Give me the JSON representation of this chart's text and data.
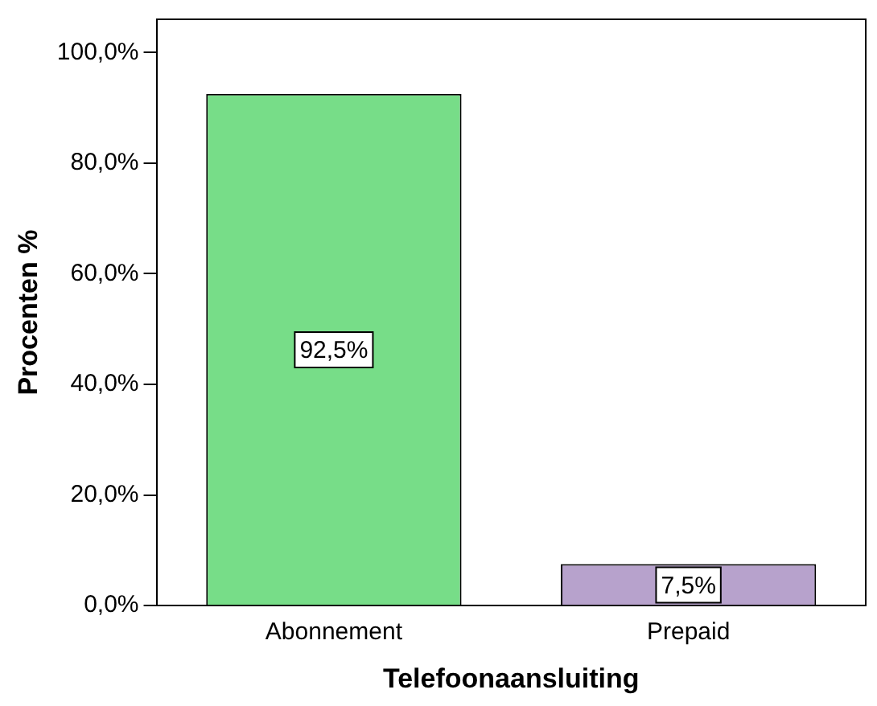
{
  "chart_data": {
    "type": "bar",
    "xlabel": "Telefoonaansluiting",
    "ylabel": "Procenten %",
    "categories": [
      "Abonnement",
      "Prepaid"
    ],
    "values": [
      92.5,
      7.5
    ],
    "colors": [
      "#77dd88",
      "#b7a2cc"
    ],
    "value_labels": [
      "92,5%",
      "7,5%"
    ],
    "ylim": [
      0,
      106
    ],
    "yticks": [
      {
        "value": 0,
        "label": "0,0%"
      },
      {
        "value": 20,
        "label": "20,0%"
      },
      {
        "value": 40,
        "label": "40,0%"
      },
      {
        "value": 60,
        "label": "60,0%"
      },
      {
        "value": 80,
        "label": "80,0%"
      },
      {
        "value": 100,
        "label": "100,0%"
      }
    ],
    "grid": false,
    "legend": false
  }
}
